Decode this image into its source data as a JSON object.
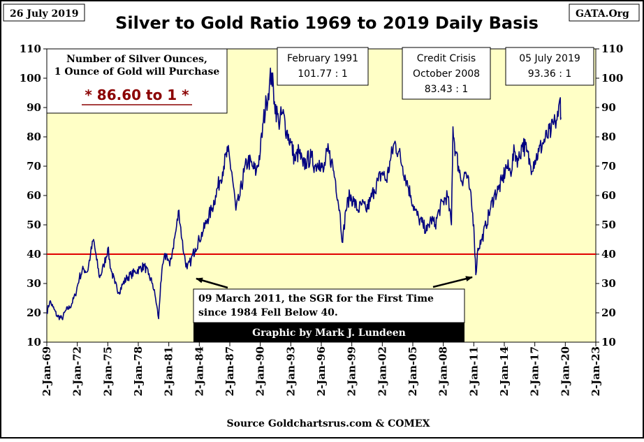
{
  "header": {
    "date_badge": "26 July 2019",
    "source_badge": "GATA.Org"
  },
  "footer": {
    "source": "Source Goldchartsrus.com & COMEX",
    "credit": "Graphic by Mark J. Lundeen"
  },
  "annotations": {
    "ratio_box_line1": "Number of Silver Ounces,",
    "ratio_box_line2": "1 Ounce of Gold will Purchase",
    "ratio_box_value": "* 86.60 to 1 *",
    "feb1991_line1": "February 1991",
    "feb1991_line2": "101.77 : 1",
    "credit_crisis_line1": "Credit Crisis",
    "credit_crisis_line2": "October 2008",
    "credit_crisis_line3": "83.43 : 1",
    "jul2019_line1": "05 July 2019",
    "jul2019_line2": "93.36 : 1",
    "mar2011_line1": "09 March 2011, the SGR for the First Time",
    "mar2011_line2": "since 1984 Fell Below 40."
  },
  "colors": {
    "plot_background": "#ffffc6",
    "series": "#000080",
    "reference_line": "#e00000",
    "ratio_text": "#8b0000"
  },
  "chart_data": {
    "type": "line",
    "title": "Silver to Gold Ratio 1969 to 2019 Daily Basis",
    "xlabel": "",
    "ylabel": "",
    "ylim": [
      10,
      110
    ],
    "yticks": [
      10,
      20,
      30,
      40,
      50,
      60,
      70,
      80,
      90,
      100,
      110
    ],
    "xlim": [
      1969,
      2023
    ],
    "xticks": [
      {
        "label": "2-Jan-69",
        "x": 1969
      },
      {
        "label": "2-Jan-72",
        "x": 1972
      },
      {
        "label": "2-Jan-75",
        "x": 1975
      },
      {
        "label": "2-Jan-78",
        "x": 1978
      },
      {
        "label": "2-Jan-81",
        "x": 1981
      },
      {
        "label": "2-Jan-84",
        "x": 1984
      },
      {
        "label": "2-Jan-87",
        "x": 1987
      },
      {
        "label": "2-Jan-90",
        "x": 1990
      },
      {
        "label": "2-Jan-93",
        "x": 1993
      },
      {
        "label": "2-Jan-96",
        "x": 1996
      },
      {
        "label": "2-Jan-99",
        "x": 1999
      },
      {
        "label": "2-Jan-02",
        "x": 2002
      },
      {
        "label": "2-Jan-05",
        "x": 2005
      },
      {
        "label": "2-Jan-08",
        "x": 2008
      },
      {
        "label": "2-Jan-11",
        "x": 2011
      },
      {
        "label": "2-Jan-14",
        "x": 2014
      },
      {
        "label": "2-Jan-17",
        "x": 2017
      },
      {
        "label": "2-Jan-20",
        "x": 2020
      },
      {
        "label": "2-Jan-23",
        "x": 2023
      }
    ],
    "reference_line": 40,
    "grid": false,
    "series": [
      {
        "x": [
          1969.0,
          1969.3,
          1969.6,
          1970.0,
          1970.5,
          1970.9,
          1971.3,
          1971.8,
          1972.2,
          1972.6,
          1973.0,
          1973.3,
          1973.6,
          1973.9,
          1974.2,
          1974.6,
          1975.0,
          1975.3,
          1975.7,
          1976.1,
          1976.5,
          1976.9,
          1977.3,
          1977.7,
          1978.1,
          1978.6,
          1979.0,
          1979.4,
          1979.7,
          1980.0,
          1980.2,
          1980.5,
          1980.8,
          1981.1,
          1981.4,
          1981.7,
          1982.0,
          1982.3,
          1982.5,
          1982.8,
          1983.2,
          1983.6,
          1984.0,
          1984.4,
          1984.8,
          1985.2,
          1985.6,
          1986.0,
          1986.4,
          1986.8,
          1987.2,
          1987.6,
          1988.0,
          1988.4,
          1988.8,
          1989.2,
          1989.6,
          1990.0,
          1990.3,
          1990.6,
          1990.9,
          1991.1,
          1991.4,
          1991.8,
          1992.2,
          1992.6,
          1993.0,
          1993.4,
          1993.8,
          1994.2,
          1994.6,
          1995.0,
          1995.4,
          1995.8,
          1996.2,
          1996.6,
          1997.0,
          1997.4,
          1997.8,
          1998.1,
          1998.4,
          1998.8,
          1999.2,
          1999.6,
          2000.0,
          2000.4,
          2000.8,
          2001.2,
          2001.6,
          2002.0,
          2002.4,
          2002.8,
          2003.2,
          2003.6,
          2004.0,
          2004.4,
          2004.8,
          2005.2,
          2005.6,
          2006.0,
          2006.4,
          2006.8,
          2007.2,
          2007.6,
          2008.0,
          2008.4,
          2008.8,
          2008.95,
          2009.2,
          2009.5,
          2009.8,
          2010.2,
          2010.6,
          2011.0,
          2011.2,
          2011.4,
          2011.8,
          2012.2,
          2012.6,
          2013.0,
          2013.4,
          2013.8,
          2014.2,
          2014.6,
          2015.0,
          2015.4,
          2015.8,
          2016.2,
          2016.6,
          2017.0,
          2017.4,
          2017.8,
          2018.2,
          2018.6,
          2019.0,
          2019.3,
          2019.51,
          2019.57
        ],
        "y": [
          20,
          24,
          22,
          19,
          18,
          21,
          22,
          26,
          32,
          35,
          34,
          40,
          45,
          38,
          32,
          36,
          42,
          35,
          30,
          27,
          30,
          32,
          33,
          34,
          35,
          36,
          33,
          30,
          25,
          18,
          30,
          38,
          40,
          36,
          42,
          48,
          55,
          45,
          40,
          35,
          38,
          42,
          45,
          48,
          52,
          55,
          60,
          65,
          70,
          75,
          68,
          55,
          60,
          68,
          72,
          70,
          68,
          75,
          85,
          92,
          98,
          101.77,
          92,
          85,
          88,
          82,
          78,
          72,
          75,
          70,
          72,
          73,
          70,
          72,
          68,
          75,
          72,
          65,
          55,
          44,
          55,
          60,
          58,
          55,
          57,
          55,
          58,
          62,
          65,
          68,
          65,
          72,
          78,
          75,
          70,
          65,
          60,
          55,
          52,
          50,
          48,
          52,
          50,
          55,
          58,
          60,
          50,
          83.43,
          75,
          70,
          65,
          68,
          62,
          50,
          33,
          42,
          45,
          50,
          55,
          60,
          62,
          65,
          70,
          68,
          75,
          72,
          78,
          75,
          70,
          72,
          75,
          78,
          80,
          82,
          85,
          87,
          93.36,
          86.6
        ]
      }
    ]
  }
}
